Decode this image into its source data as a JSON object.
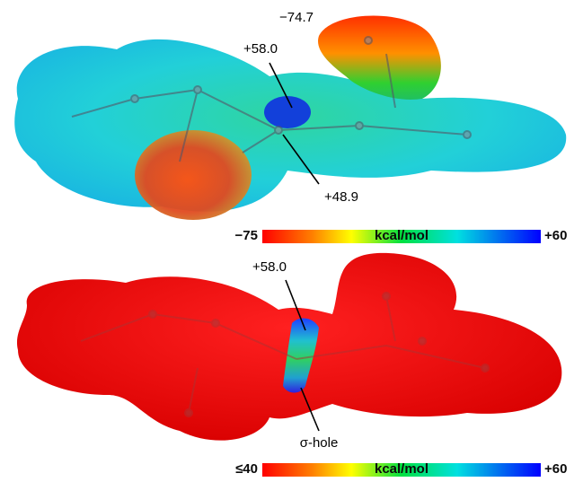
{
  "top_panel": {
    "labels": [
      "−74.7",
      "+58.0",
      "+48.9"
    ],
    "colorbar": {
      "min": "−75",
      "unit": "kcal/mol",
      "max": "+60"
    }
  },
  "bottom_panel": {
    "labels": [
      "+58.0",
      "σ-hole"
    ],
    "colorbar": {
      "min": "≤40",
      "unit": "kcal/mol",
      "max": "+60"
    }
  }
}
